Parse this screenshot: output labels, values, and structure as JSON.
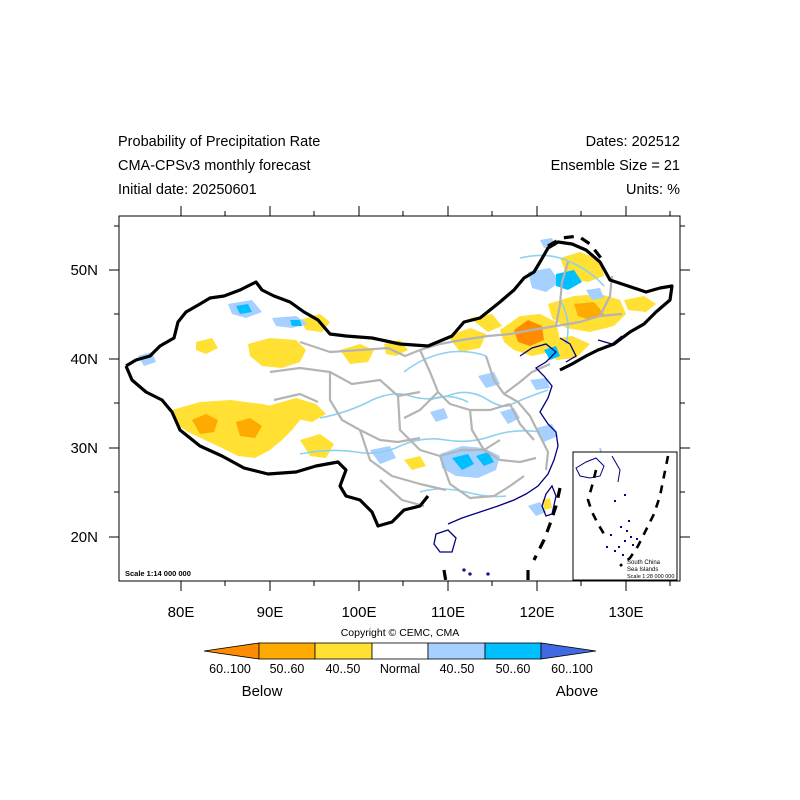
{
  "header": {
    "title_line1": "Probability of Precipitation Rate",
    "title_line2": "CMA-CPSv3 monthly forecast",
    "title_line3": "Initial date: 20250601",
    "dates": "Dates: 202512",
    "ensemble": "Ensemble Size = 21",
    "units": "Units: %"
  },
  "map": {
    "lon_labels": [
      "80E",
      "90E",
      "100E",
      "110E",
      "120E",
      "130E"
    ],
    "lat_labels": [
      "50N",
      "40N",
      "30N",
      "20N"
    ],
    "scale_text": "Scale 1:14 000 000",
    "inset": {
      "line1": "South China",
      "line2": "Sea Islands",
      "line3": "Scale 1:28 000 000"
    }
  },
  "copyright": "Copyright © CEMC, CMA",
  "colorbar": {
    "colors": [
      "#ff8c00",
      "#ffaa00",
      "#ffe033",
      "#ffffff",
      "#a6d0ff",
      "#00bfff",
      "#4169e1"
    ],
    "labels": [
      "60..100",
      "50..60",
      "40..50",
      "Normal",
      "40..50",
      "50..60",
      "60..100"
    ],
    "below": "Below",
    "above": "Above"
  },
  "colors": {
    "province_border": "#b4b4b4",
    "river": "#8fd0ee",
    "coastline": "#000080",
    "country_border": "#000000"
  }
}
